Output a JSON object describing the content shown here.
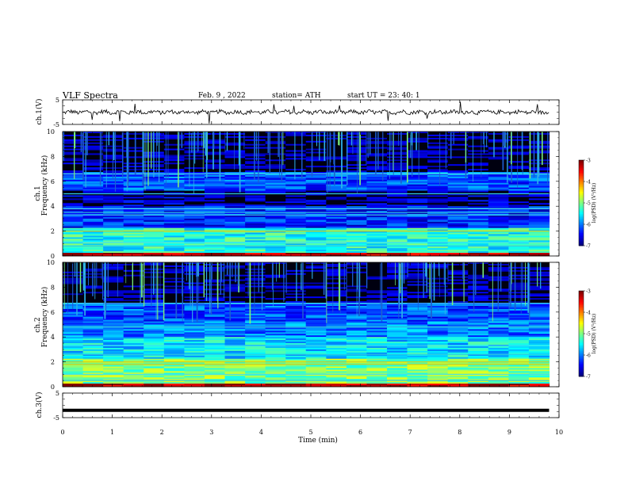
{
  "header": {
    "title": "VLF  Spectra",
    "date": "Feb. 9  , 2022",
    "station": "station= ATH",
    "start": "start  UT  =    23: 40: 1"
  },
  "chart_data": [
    {
      "type": "line",
      "panel": "ch1-waveform",
      "ylabel": "ch.1(V)",
      "ylim": [
        -5,
        5
      ],
      "yticks": [
        "5",
        "-5"
      ],
      "xlim": [
        0,
        10
      ],
      "series": [
        {
          "color": "#000000"
        }
      ]
    },
    {
      "type": "heatmap",
      "panel": "ch1-spectrogram",
      "ylabel": "ch.1\nFrequency  (kHz)",
      "ylim": [
        0,
        10
      ],
      "yticks": [
        "0",
        "2",
        "4",
        "6",
        "8",
        "10"
      ],
      "xlim": [
        0,
        10
      ],
      "data_end_min": 9.8,
      "colorbar": {
        "label": "log(PSD) (V²/Hz)",
        "range": [
          -7,
          -3
        ],
        "ticks": [
          "-3",
          "-4",
          "-5",
          "-6",
          "-7"
        ]
      }
    },
    {
      "type": "heatmap",
      "panel": "ch2-spectrogram",
      "ylabel": "ch.2\nFrequency  (kHz)",
      "ylim": [
        0,
        10
      ],
      "yticks": [
        "0",
        "2",
        "4",
        "6",
        "8",
        "10"
      ],
      "xlim": [
        0,
        10
      ],
      "data_end_min": 9.8,
      "colorbar": {
        "label": "log(PSD) (V²/Hz)",
        "range": [
          -7,
          -3
        ],
        "ticks": [
          "-3",
          "-4",
          "-5",
          "-6",
          "-7"
        ]
      }
    },
    {
      "type": "line",
      "panel": "ch3-waveform",
      "ylabel": "ch.3(V)",
      "ylim": [
        -5,
        5
      ],
      "yticks": [
        "5",
        "-5"
      ],
      "xlim": [
        0,
        10
      ],
      "xlabel": "Time  (min)",
      "xticks": [
        "0",
        "1",
        "2",
        "3",
        "4",
        "5",
        "6",
        "7",
        "8",
        "9",
        "10"
      ],
      "series": [
        {
          "color": "#000000",
          "level": -2
        }
      ]
    }
  ]
}
